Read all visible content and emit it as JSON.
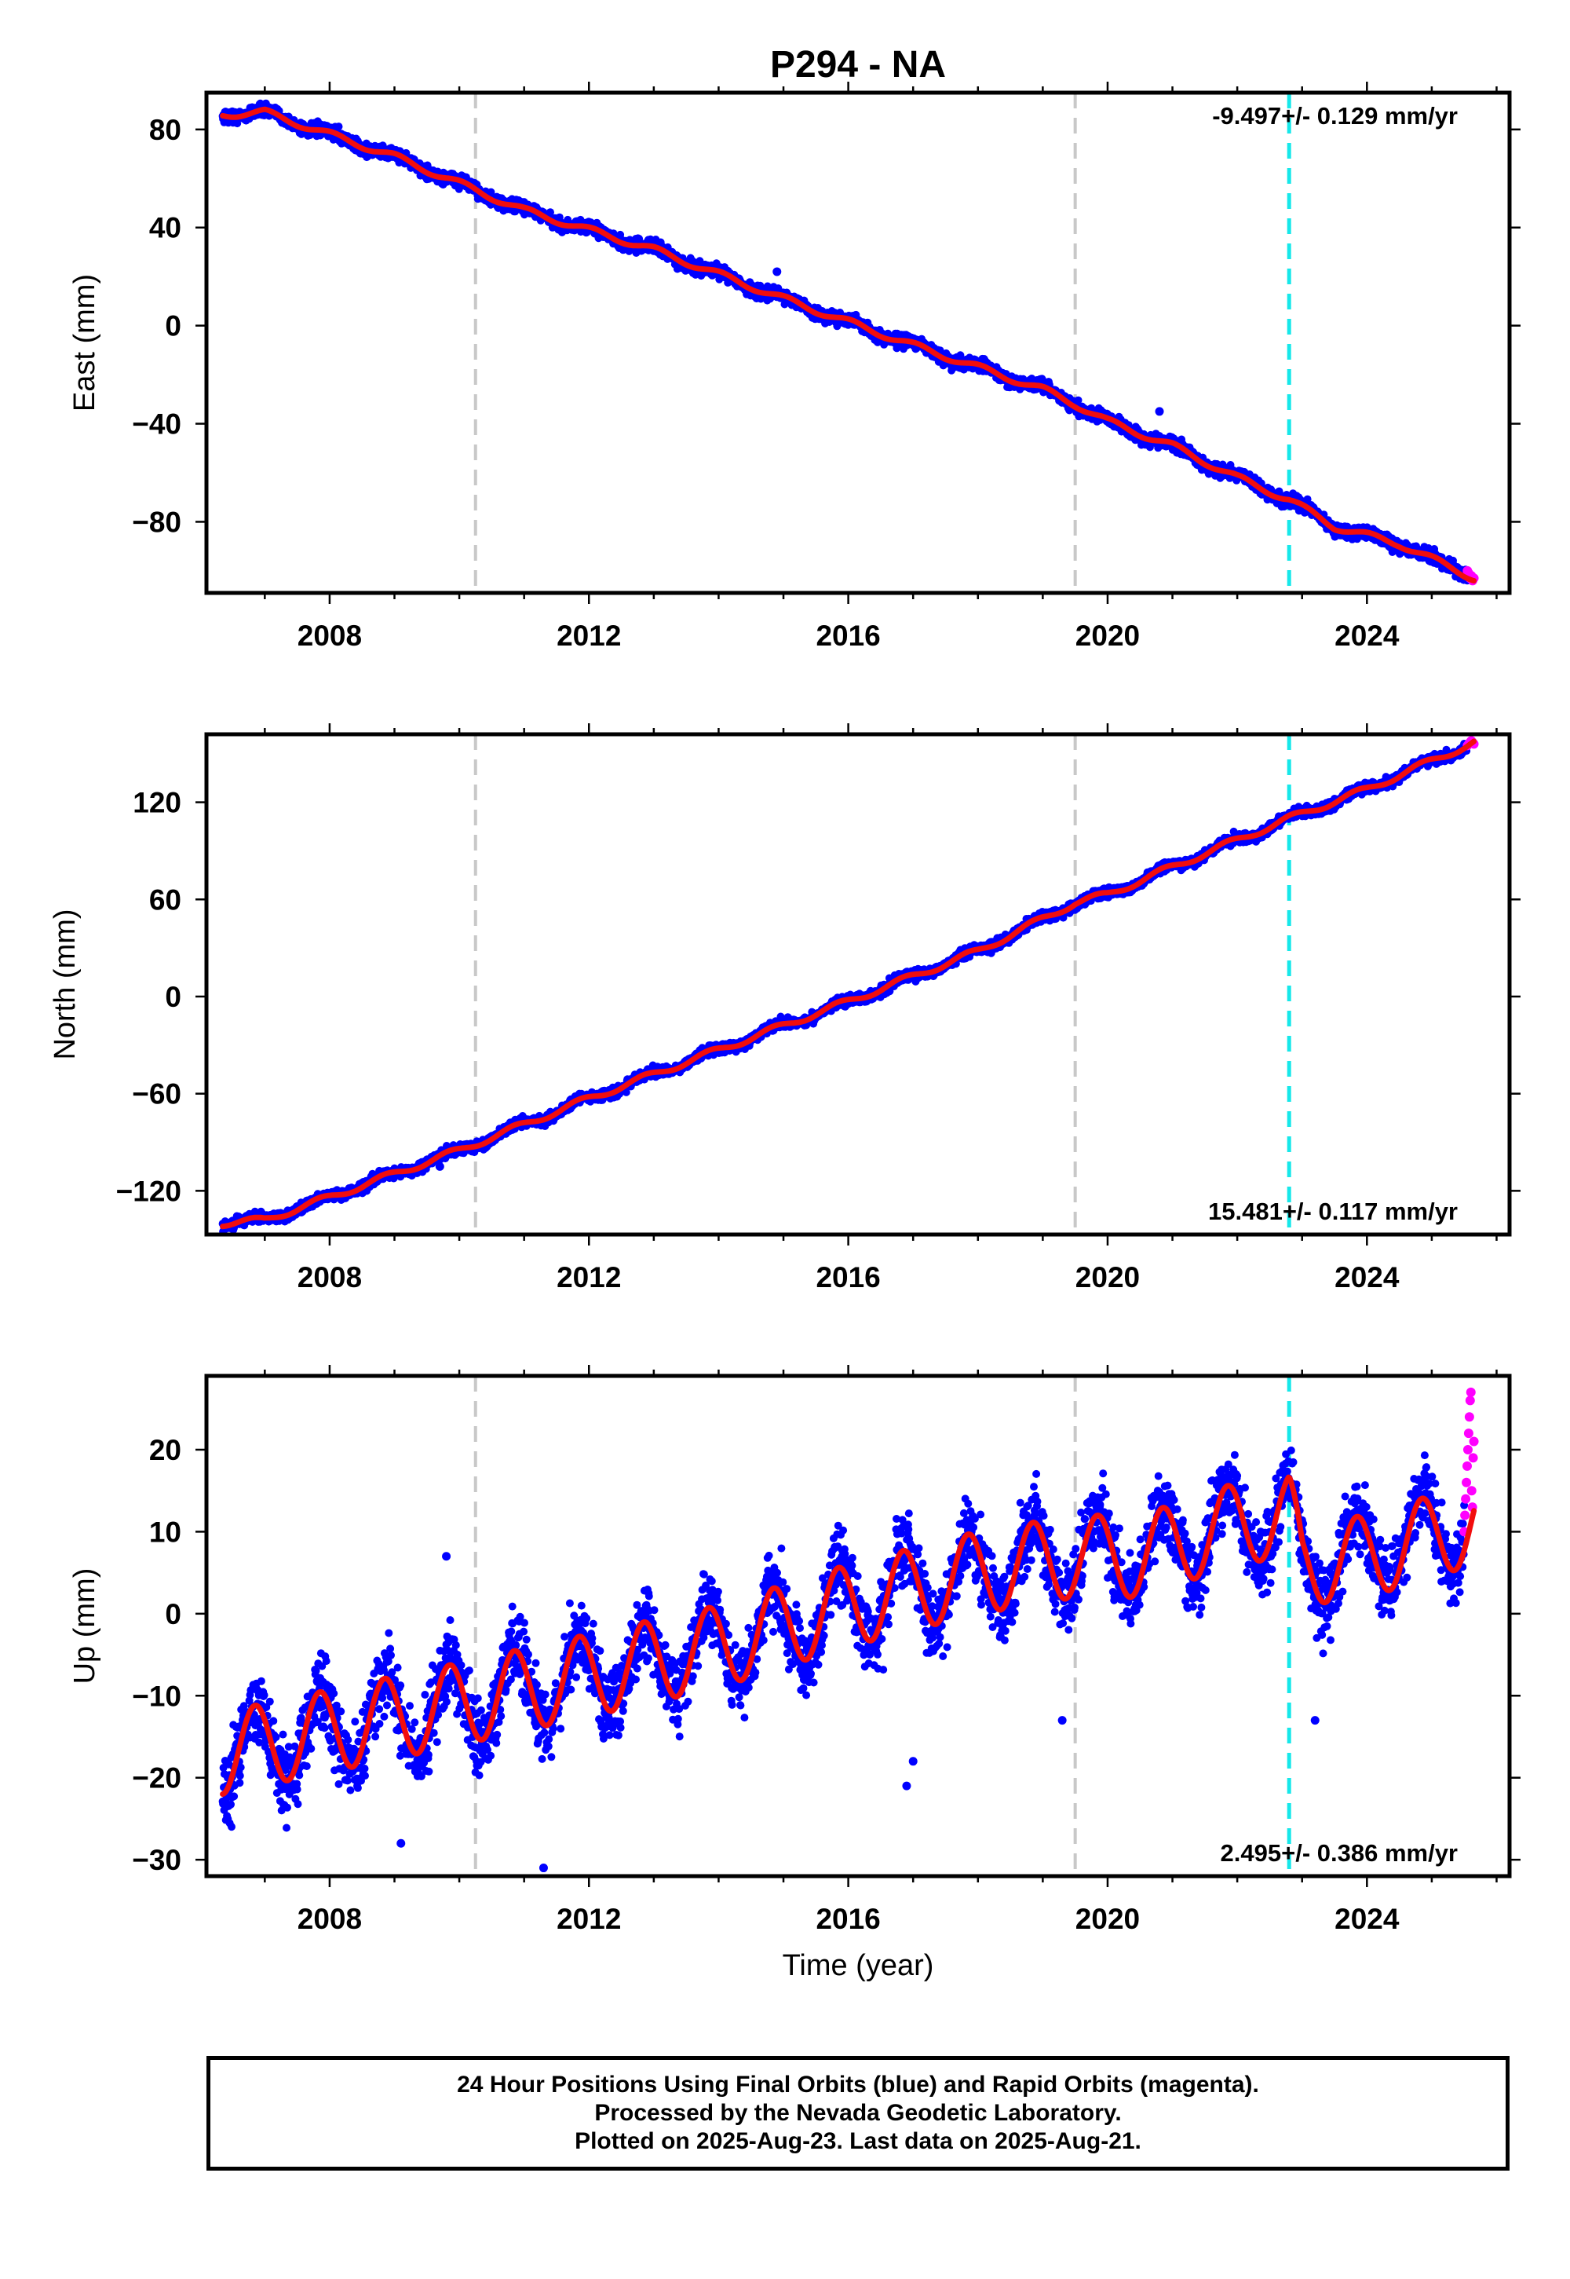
{
  "title": "P294 - NA",
  "xlabel": "Time (year)",
  "footer": {
    "line1": "24 Hour Positions Using Final Orbits (blue) and Rapid Orbits (magenta).",
    "line2": "Processed by the Nevada Geodetic Laboratory.",
    "line3": "Plotted on 2025-Aug-23. Last data on 2025-Aug-21."
  },
  "colors": {
    "final_orbits": "#0000ff",
    "rapid_orbits": "#ff00ff",
    "model": "#f20d0d",
    "equipment_change": "#c8c8c8",
    "earthquake": "#16e8ea"
  },
  "chart_data": [
    {
      "type": "scatter",
      "component": "East",
      "ylabel": "East (mm)",
      "rate_label": "-9.497+/- 0.129 mm/yr",
      "xlim": [
        2006.1,
        2026.2
      ],
      "ylim": [
        -109,
        95
      ],
      "xticks": [
        2008,
        2012,
        2016,
        2020,
        2024
      ],
      "yticks": [
        80,
        40,
        0,
        -40,
        -80
      ],
      "ytick_labels": [
        "80",
        "40",
        "0",
        "−40",
        "−80"
      ],
      "grid": false,
      "vertical_markers": [
        {
          "x": 2010.25,
          "kind": "equipment_change"
        },
        {
          "x": 2019.5,
          "kind": "equipment_change"
        },
        {
          "x": 2022.8,
          "kind": "earthquake"
        }
      ],
      "model": {
        "start": 2006.35,
        "end": 2025.65,
        "anchors": [
          [
            2006.35,
            86
          ],
          [
            2007.0,
            87
          ],
          [
            2009.0,
            69
          ],
          [
            2011.0,
            47
          ],
          [
            2013.0,
            31
          ],
          [
            2015.0,
            11
          ],
          [
            2017.0,
            -8
          ],
          [
            2019.0,
            -26
          ],
          [
            2019.5,
            -32
          ],
          [
            2020.0,
            -39
          ],
          [
            2021.0,
            -49
          ],
          [
            2022.0,
            -62
          ],
          [
            2022.8,
            -71
          ],
          [
            2023.5,
            -82
          ],
          [
            2024.5,
            -89
          ],
          [
            2025.65,
            -103
          ]
        ],
        "annual_amplitude": 1.3,
        "annual_phase_year": 2006.8
      },
      "scatter_spread": 1.8,
      "outliers": [
        [
          2014.9,
          22
        ],
        [
          2020.8,
          -35
        ]
      ],
      "rapid_points": {
        "start": 2025.55,
        "end": 2025.65,
        "values": [
          -100,
          -101,
          -103,
          -102,
          -104,
          -103
        ]
      }
    },
    {
      "type": "scatter",
      "component": "North",
      "ylabel": "North (mm)",
      "rate_label": "15.481+/- 0.117 mm/yr",
      "xlim": [
        2006.1,
        2026.2
      ],
      "ylim": [
        -147,
        162
      ],
      "xticks": [
        2008,
        2012,
        2016,
        2020,
        2024
      ],
      "yticks": [
        120,
        60,
        0,
        -60,
        -120
      ],
      "ytick_labels": [
        "120",
        "60",
        "0",
        "−60",
        "−120"
      ],
      "grid": false,
      "vertical_markers": [
        {
          "x": 2010.25,
          "kind": "equipment_change"
        },
        {
          "x": 2019.5,
          "kind": "equipment_change"
        },
        {
          "x": 2022.8,
          "kind": "earthquake"
        }
      ],
      "model": {
        "start": 2006.35,
        "end": 2025.65,
        "anchors": [
          [
            2006.35,
            -140
          ],
          [
            2007.0,
            -138
          ],
          [
            2008.0,
            -124
          ],
          [
            2010.0,
            -95
          ],
          [
            2012.0,
            -63
          ],
          [
            2014.0,
            -33
          ],
          [
            2016.0,
            -3
          ],
          [
            2018.0,
            28
          ],
          [
            2019.5,
            58
          ],
          [
            2020.0,
            63
          ],
          [
            2021.0,
            80
          ],
          [
            2022.8,
            110
          ],
          [
            2024.0,
            128
          ],
          [
            2025.65,
            157
          ]
        ],
        "annual_amplitude": 2.0,
        "annual_phase_year": 2006.6
      },
      "scatter_spread": 2.2,
      "outliers": [
        [
          2009.7,
          -105
        ]
      ],
      "rapid_points": {
        "start": 2025.55,
        "end": 2025.65,
        "values": [
          155,
          156,
          157,
          158,
          157,
          156
        ]
      }
    },
    {
      "type": "scatter",
      "component": "Up",
      "ylabel": "Up (mm)",
      "rate_label": "2.495+/- 0.386 mm/yr",
      "xlim": [
        2006.1,
        2026.2
      ],
      "ylim": [
        -32,
        29
      ],
      "xticks": [
        2008,
        2012,
        2016,
        2020,
        2024
      ],
      "yticks": [
        20,
        10,
        0,
        -10,
        -20,
        -30
      ],
      "ytick_labels": [
        "20",
        "10",
        "0",
        "−10",
        "−20",
        "−30"
      ],
      "grid": false,
      "vertical_markers": [
        {
          "x": 2010.25,
          "kind": "equipment_change"
        },
        {
          "x": 2019.5,
          "kind": "equipment_change"
        },
        {
          "x": 2022.8,
          "kind": "earthquake"
        }
      ],
      "model": {
        "start": 2006.35,
        "end": 2025.65,
        "anchors": [
          [
            2006.35,
            -17
          ],
          [
            2010.0,
            -11
          ],
          [
            2014.0,
            -4
          ],
          [
            2016.0,
            1
          ],
          [
            2018.0,
            5
          ],
          [
            2019.5,
            7
          ],
          [
            2020.5,
            7
          ],
          [
            2022.0,
            11
          ],
          [
            2022.8,
            12
          ],
          [
            2023.0,
            6
          ],
          [
            2024.0,
            7
          ],
          [
            2025.65,
            11
          ]
        ],
        "annual_amplitude": 5.0,
        "annual_phase_year": 2006.6
      },
      "scatter_spread": 3.2,
      "outliers": [
        [
          2016.9,
          -21
        ],
        [
          2017.0,
          -18
        ],
        [
          2023.2,
          -13
        ],
        [
          2011.3,
          -31
        ],
        [
          2019.3,
          -13
        ],
        [
          2009.1,
          -28
        ],
        [
          2009.8,
          7
        ]
      ],
      "rapid_points": {
        "start": 2025.5,
        "end": 2025.65,
        "values": [
          10,
          12,
          14,
          16,
          18,
          20,
          22,
          24,
          26,
          27,
          15,
          13,
          19,
          21
        ]
      }
    }
  ]
}
